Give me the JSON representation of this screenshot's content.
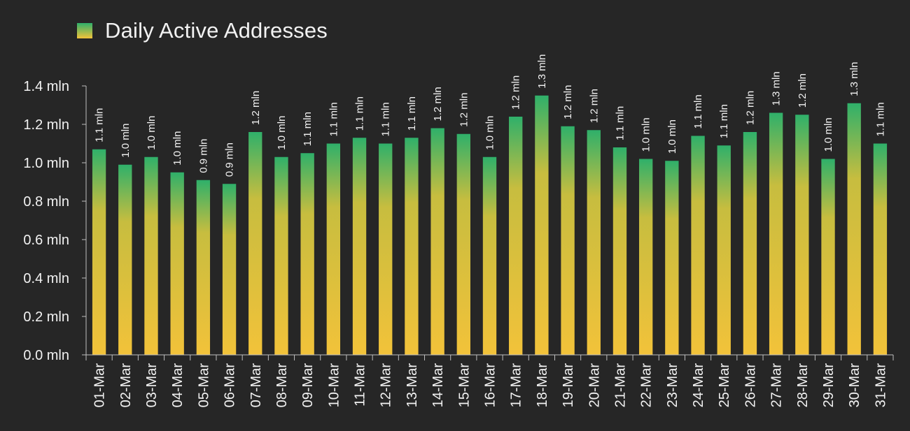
{
  "chart_data": {
    "type": "bar",
    "legend": {
      "label": "Daily Active Addresses",
      "position": "top-left"
    },
    "categories": [
      "01-Mar",
      "02-Mar",
      "03-Mar",
      "04-Mar",
      "05-Mar",
      "06-Mar",
      "07-Mar",
      "08-Mar",
      "09-Mar",
      "10-Mar",
      "11-Mar",
      "12-Mar",
      "13-Mar",
      "14-Mar",
      "15-Mar",
      "16-Mar",
      "17-Mar",
      "18-Mar",
      "19-Mar",
      "20-Mar",
      "21-Mar",
      "22-Mar",
      "23-Mar",
      "24-Mar",
      "25-Mar",
      "26-Mar",
      "27-Mar",
      "28-Mar",
      "29-Mar",
      "30-Mar",
      "31-Mar"
    ],
    "series": [
      {
        "name": "Daily Active Addresses",
        "values": [
          1.07,
          0.99,
          1.03,
          0.95,
          0.91,
          0.89,
          1.16,
          1.03,
          1.05,
          1.1,
          1.13,
          1.1,
          1.13,
          1.18,
          1.15,
          1.03,
          1.24,
          1.35,
          1.19,
          1.17,
          1.08,
          1.02,
          1.01,
          1.14,
          1.09,
          1.16,
          1.26,
          1.25,
          1.02,
          1.31,
          1.1
        ],
        "data_labels": [
          "1.1 mln",
          "1.0 mln",
          "1.0 mln",
          "1.0 mln",
          "0.9 mln",
          "0.9 mln",
          "1.2 mln",
          "1.0 mln",
          "1.1 mln",
          "1.1 mln",
          "1.1 mln",
          "1.1 mln",
          "1.1 mln",
          "1.2 mln",
          "1.2 mln",
          "1.0 mln",
          "1.2 mln",
          "1.3 mln",
          "1.2 mln",
          "1.2 mln",
          "1.1 mln",
          "1.0 mln",
          "1.0 mln",
          "1.1 mln",
          "1.1 mln",
          "1.2 mln",
          "1.3 mln",
          "1.2 mln",
          "1.0 mln",
          "1.3 mln",
          "1.1 mln"
        ]
      }
    ],
    "y_ticks": [
      "0.0 mln",
      "0.2 mln",
      "0.4 mln",
      "0.6 mln",
      "0.8 mln",
      "1.0 mln",
      "1.2 mln",
      "1.4 mln"
    ],
    "ylim": [
      0,
      1.4
    ],
    "grid": false,
    "colors": {
      "background": "#262626",
      "bar_top": "#2fb06a",
      "bar_bottom": "#f2c23a",
      "text": "#f2f2f2",
      "axis": "#bfbfbf"
    }
  }
}
